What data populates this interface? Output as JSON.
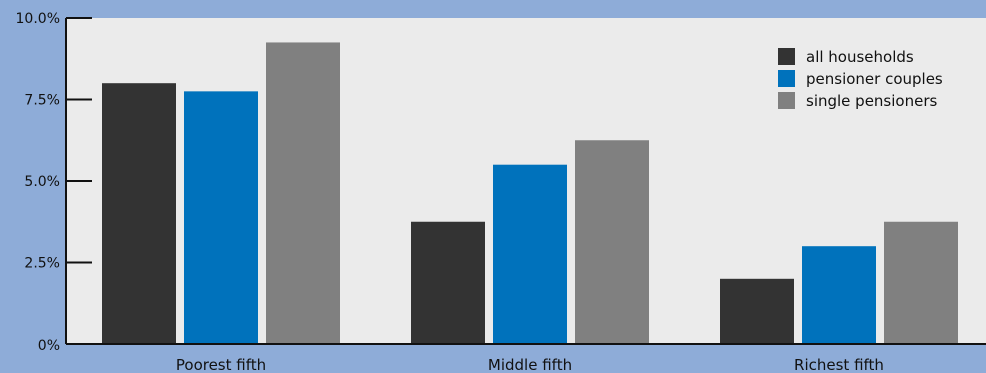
{
  "chart_data": {
    "type": "bar",
    "title": "",
    "xlabel": "",
    "ylabel": "",
    "categories": [
      "Poorest fifth",
      "Middle fifth",
      "Richest fifth"
    ],
    "series": [
      {
        "name": "all households",
        "color": "#333333",
        "values": [
          8.0,
          3.75,
          2.0
        ]
      },
      {
        "name": "pensioner couples",
        "color": "#0072bc",
        "values": [
          7.75,
          5.5,
          3.0
        ]
      },
      {
        "name": "single pensioners",
        "color": "#808080",
        "values": [
          9.25,
          6.25,
          3.75
        ]
      }
    ],
    "ylim": [
      0,
      10
    ],
    "yticks": [
      {
        "value": 0,
        "label": "0%"
      },
      {
        "value": 2.5,
        "label": "2.5%"
      },
      {
        "value": 5,
        "label": "5.0%"
      },
      {
        "value": 7.5,
        "label": "7.5%"
      },
      {
        "value": 10,
        "label": "10.0%"
      }
    ],
    "grid": false,
    "legend_position": "top-right",
    "plot_background": "#ebebeb",
    "page_background": "#8eacd8"
  }
}
